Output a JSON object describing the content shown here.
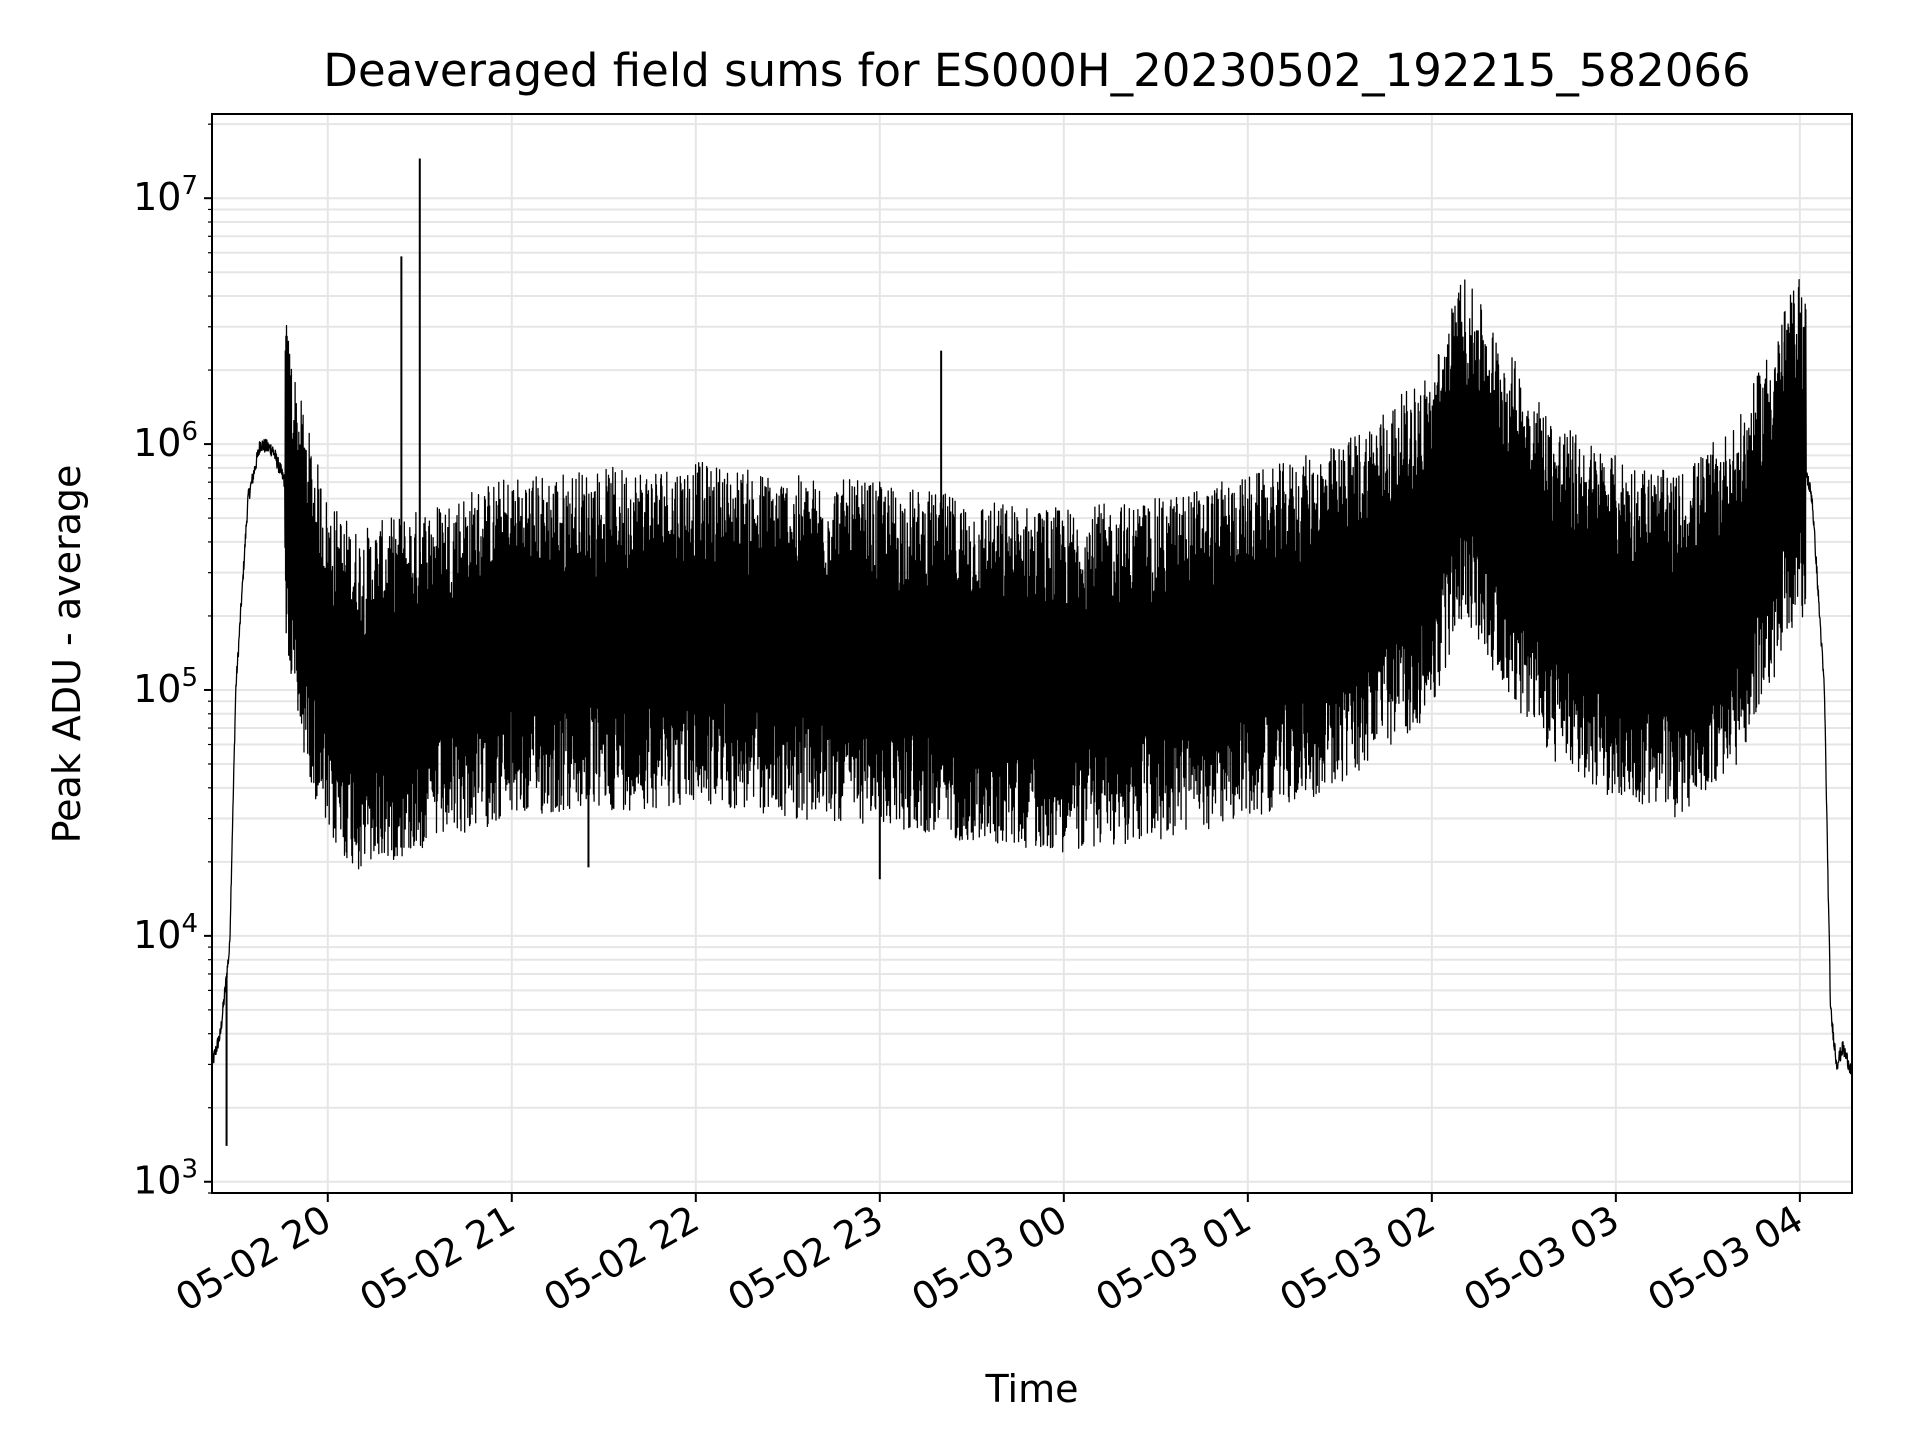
{
  "chart_data": {
    "type": "line",
    "title": "Deaveraged field sums for ES000H_20230502_192215_582066",
    "xlabel": "Time",
    "ylabel": "Peak ADU - average",
    "yscale": "log",
    "ylim": [
      900,
      22000000
    ],
    "xlim": [
      "2023-05-02 19:22:15",
      "2023-05-03 04:17:00"
    ],
    "grid": true,
    "x_ticks": [
      {
        "t": "2023-05-02 20:00",
        "label": "05-02 20"
      },
      {
        "t": "2023-05-02 21:00",
        "label": "05-02 21"
      },
      {
        "t": "2023-05-02 22:00",
        "label": "05-02 22"
      },
      {
        "t": "2023-05-02 23:00",
        "label": "05-02 23"
      },
      {
        "t": "2023-05-03 00:00",
        "label": "05-03 00"
      },
      {
        "t": "2023-05-03 01:00",
        "label": "05-03 01"
      },
      {
        "t": "2023-05-03 02:00",
        "label": "05-03 02"
      },
      {
        "t": "2023-05-03 03:00",
        "label": "05-03 03"
      },
      {
        "t": "2023-05-03 04:00",
        "label": "05-03 04"
      }
    ],
    "y_ticks": [
      {
        "value": 1000,
        "base": "10",
        "exp": "3"
      },
      {
        "value": 10000,
        "base": "10",
        "exp": "4"
      },
      {
        "value": 100000,
        "base": "10",
        "exp": "5"
      },
      {
        "value": 1000000,
        "base": "10",
        "exp": "6"
      },
      {
        "value": 10000000,
        "base": "10",
        "exp": "7"
      }
    ],
    "series": [
      {
        "color": "#000000",
        "baseline": [
          [
            "2023-05-02 19:22:15",
            3000
          ],
          [
            "2023-05-02 19:25:00",
            4000
          ],
          [
            "2023-05-02 19:28:00",
            9000
          ],
          [
            "2023-05-02 19:30:00",
            100000
          ],
          [
            "2023-05-02 19:34:00",
            600000
          ],
          [
            "2023-05-02 19:38:00",
            1000000
          ],
          [
            "2023-05-02 19:42:00",
            950000
          ],
          [
            "2023-05-02 19:46:00",
            700000
          ],
          [
            "2023-05-02 19:50:00",
            350000
          ],
          [
            "2023-05-02 19:55:00",
            200000
          ],
          [
            "2023-05-02 20:00:00",
            120000
          ],
          [
            "2023-05-02 20:10:00",
            90000
          ],
          [
            "2023-05-02 20:20:00",
            100000
          ],
          [
            "2023-05-02 20:30:00",
            110000
          ],
          [
            "2023-05-02 20:45:00",
            130000
          ],
          [
            "2023-05-02 21:00:00",
            150000
          ],
          [
            "2023-05-02 21:30:00",
            160000
          ],
          [
            "2023-05-02 22:00:00",
            170000
          ],
          [
            "2023-05-02 22:30:00",
            150000
          ],
          [
            "2023-05-02 23:00:00",
            140000
          ],
          [
            "2023-05-02 23:30:00",
            120000
          ],
          [
            "2023-05-03 00:00:00",
            110000
          ],
          [
            "2023-05-03 00:30:00",
            120000
          ],
          [
            "2023-05-03 01:00:00",
            150000
          ],
          [
            "2023-05-03 01:30:00",
            200000
          ],
          [
            "2023-05-03 02:00:00",
            400000
          ],
          [
            "2023-05-03 02:10:00",
            1000000
          ],
          [
            "2023-05-03 02:20:00",
            600000
          ],
          [
            "2023-05-03 02:40:00",
            250000
          ],
          [
            "2023-05-03 03:00:00",
            180000
          ],
          [
            "2023-05-03 03:20:00",
            150000
          ],
          [
            "2023-05-03 03:40:00",
            250000
          ],
          [
            "2023-05-03 03:50:00",
            500000
          ],
          [
            "2023-05-03 04:00:00",
            1000000
          ],
          [
            "2023-05-03 04:04:00",
            600000
          ],
          [
            "2023-05-03 04:08:00",
            100000
          ],
          [
            "2023-05-03 04:10:00",
            5000
          ],
          [
            "2023-05-03 04:12:00",
            3000
          ],
          [
            "2023-05-03 04:14:00",
            3500
          ],
          [
            "2023-05-03 04:17:00",
            2800
          ]
        ],
        "noise_start": "2023-05-02 19:46:00",
        "noise_end": "2023-05-03 04:02:00",
        "spikes": [
          [
            "2023-05-02 20:24:00",
            5800000
          ],
          [
            "2023-05-02 20:30:00",
            14500000
          ],
          [
            "2023-05-02 23:20:00",
            2400000
          ],
          [
            "2023-05-03 02:15:00",
            2900000
          ],
          [
            "2023-05-03 03:55:00",
            2600000
          ],
          [
            "2023-05-02 21:25:00",
            19000
          ],
          [
            "2023-05-02 23:00:00",
            17000
          ],
          [
            "2023-05-02 19:27:00",
            1400
          ]
        ]
      }
    ]
  }
}
